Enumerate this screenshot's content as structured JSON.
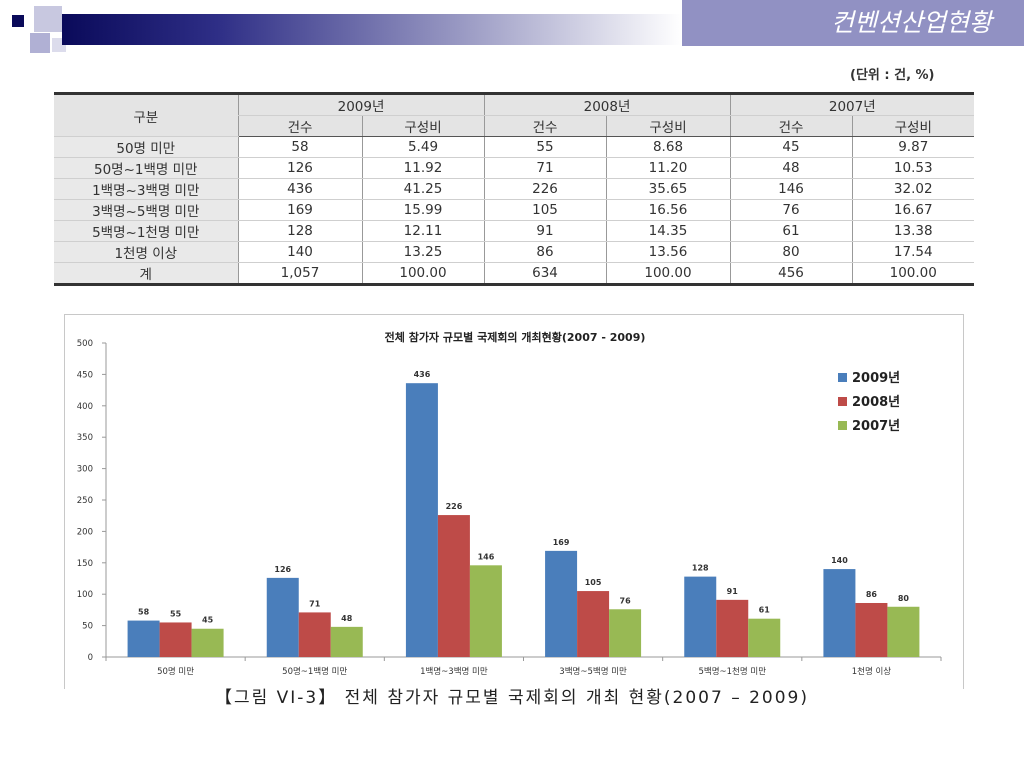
{
  "header": {
    "title": "컨벤션산업현황"
  },
  "unit_note": "(단위 : 건, %)",
  "table": {
    "col_group_label": "구분",
    "years": [
      "2009년",
      "2008년",
      "2007년"
    ],
    "sub_headers": [
      "건수",
      "구성비"
    ],
    "rows": [
      {
        "label": "50명 미만",
        "values": [
          "58",
          "5.49",
          "55",
          "8.68",
          "45",
          "9.87"
        ]
      },
      {
        "label": "50명~1백명 미만",
        "values": [
          "126",
          "11.92",
          "71",
          "11.20",
          "48",
          "10.53"
        ]
      },
      {
        "label": "1백명~3백명 미만",
        "values": [
          "436",
          "41.25",
          "226",
          "35.65",
          "146",
          "32.02"
        ]
      },
      {
        "label": "3백명~5백명 미만",
        "values": [
          "169",
          "15.99",
          "105",
          "16.56",
          "76",
          "16.67"
        ]
      },
      {
        "label": "5백명~1천명 미만",
        "values": [
          "128",
          "12.11",
          "91",
          "14.35",
          "61",
          "13.38"
        ]
      },
      {
        "label": "1천명 이상",
        "values": [
          "140",
          "13.25",
          "86",
          "13.56",
          "80",
          "17.54"
        ]
      }
    ],
    "total": {
      "label": "계",
      "values": [
        "1,057",
        "100.00",
        "634",
        "100.00",
        "456",
        "100.00"
      ]
    }
  },
  "chart_data": {
    "type": "bar",
    "title": "전체 참가자 규모별 국제회의 개최현황(2007 - 2009)",
    "categories": [
      "50명 미만",
      "50명~1백명 미만",
      "1백명~3백명 미만",
      "3백명~5백명 미만",
      "5백명~1천명 미만",
      "1천명 이상"
    ],
    "series": [
      {
        "name": "2009년",
        "color": "#4a7ebb",
        "values": [
          58,
          126,
          436,
          169,
          128,
          140
        ]
      },
      {
        "name": "2008년",
        "color": "#be4b48",
        "values": [
          55,
          71,
          226,
          105,
          91,
          86
        ]
      },
      {
        "name": "2007년",
        "color": "#98b954",
        "values": [
          45,
          48,
          146,
          76,
          61,
          80
        ]
      }
    ],
    "ylim": [
      0,
      500
    ],
    "yticks": [
      0,
      50,
      100,
      150,
      200,
      250,
      300,
      350,
      400,
      450,
      500
    ],
    "legend": "top-right",
    "grid": false
  },
  "caption": "【그림 VI-3】 전체 참가자 규모별 국제회의 개최 현황(2007 – 2009)"
}
